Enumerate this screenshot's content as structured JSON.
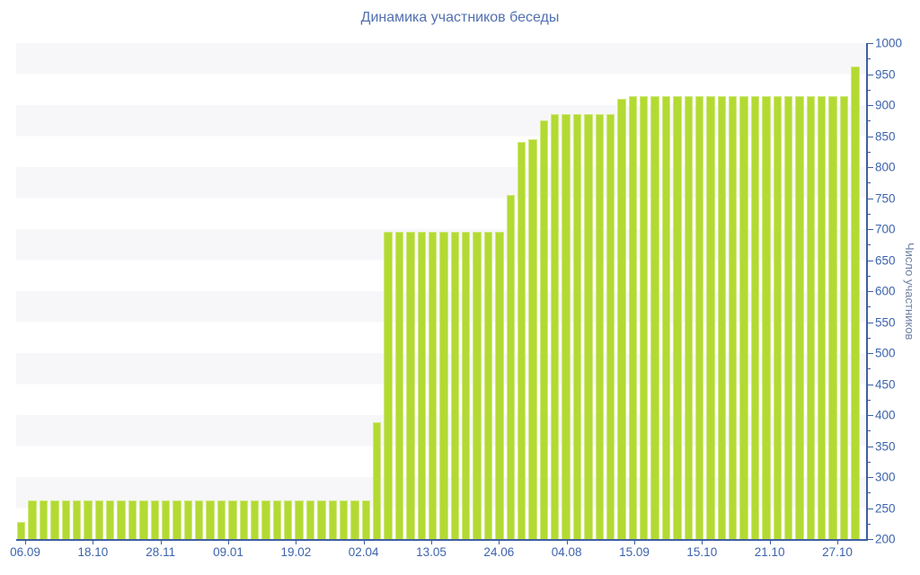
{
  "title": "Динамика участников беседы",
  "chart_data": {
    "type": "bar",
    "title": "Динамика участников беседы",
    "xlabel": "",
    "ylabel": "Число участников",
    "ylim": [
      200,
      1000
    ],
    "y_major_step": 50,
    "y_minor_step": 25,
    "grid": "alternating horizontal bands, no gridlines",
    "legend": "none",
    "y_axis_side": "right",
    "y_tick_labels": [
      "1000",
      "950",
      "900",
      "850",
      "800",
      "750",
      "700",
      "650",
      "600",
      "550",
      "500",
      "450",
      "400",
      "350",
      "300",
      "250",
      "200"
    ],
    "x_tick_labels": [
      "06.09",
      "18.10",
      "28.11",
      "09.01",
      "19.02",
      "02.04",
      "13.05",
      "24.06",
      "04.08",
      "15.09",
      "15.10",
      "21.10",
      "27.10"
    ],
    "bars_per_x_tick": 6,
    "values": [
      228,
      262,
      262,
      262,
      262,
      262,
      262,
      262,
      262,
      262,
      262,
      262,
      262,
      262,
      262,
      262,
      262,
      262,
      262,
      262,
      262,
      262,
      262,
      262,
      262,
      262,
      262,
      262,
      262,
      262,
      262,
      262,
      388,
      695,
      695,
      695,
      695,
      695,
      695,
      695,
      695,
      695,
      695,
      695,
      755,
      840,
      845,
      875,
      885,
      885,
      885,
      885,
      885,
      885,
      910,
      915,
      915,
      915,
      915,
      915,
      915,
      915,
      915,
      915,
      915,
      915,
      915,
      915,
      915,
      915,
      915,
      915,
      915,
      915,
      915,
      962
    ],
    "colors": {
      "bar": "#b3da32",
      "bar_edge": "#d0e87f",
      "axis": "#3f5fa0",
      "tick_label": "#3d63ad",
      "title": "#5271b0",
      "y_axis_title": "#6d81a2",
      "band": "#f7f7f9",
      "background": "#ffffff"
    }
  }
}
